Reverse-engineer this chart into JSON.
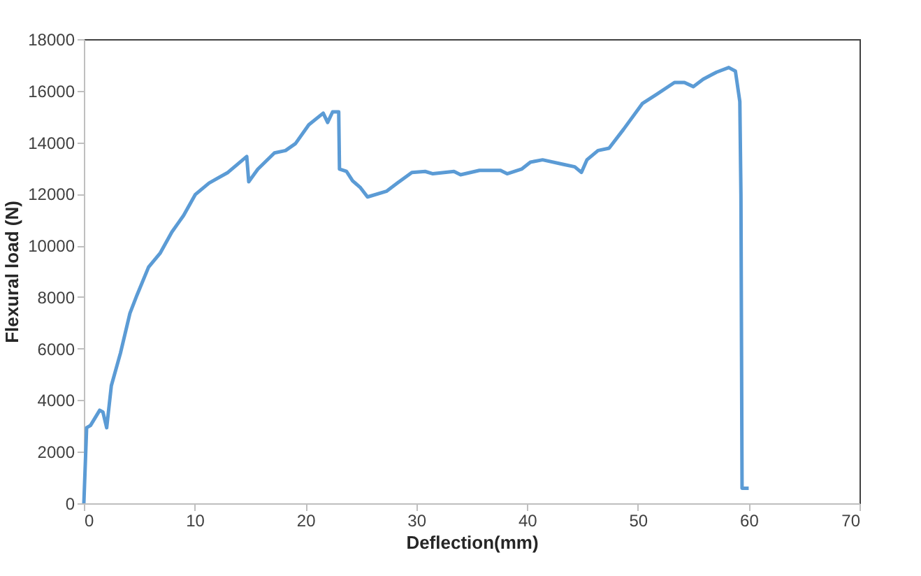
{
  "chart_data": {
    "type": "line",
    "xlabel": "Deflection(mm)",
    "ylabel": "Flexural load (N)",
    "xlim": [
      0,
      70
    ],
    "xticks": [
      0,
      10,
      20,
      30,
      40,
      50,
      60,
      70
    ],
    "ylim": [
      0,
      18000
    ],
    "yticks": [
      0,
      2000,
      4000,
      6000,
      8000,
      10000,
      12000,
      14000,
      16000,
      18000
    ],
    "grid": false,
    "marker": "none",
    "line_style": "solid",
    "series": [
      {
        "color": "#5b9bd5",
        "x": [
          0,
          0.25,
          0.6,
          1.43,
          1.72,
          2.06,
          2.48,
          3.3,
          4.16,
          4.8,
          5.84,
          6.9,
          7.94,
          9.0,
          10.05,
          11.3,
          13.0,
          14.7,
          14.88,
          15.7,
          17.2,
          18.2,
          19.1,
          20.3,
          21.6,
          22.0,
          22.45,
          23.0,
          23.07,
          23.7,
          24.25,
          24.96,
          25.6,
          27.3,
          28.3,
          29.6,
          30.8,
          31.5,
          33.4,
          34.0,
          35.7,
          37.6,
          38.2,
          39.5,
          40.3,
          41.4,
          43.3,
          44.3,
          44.9,
          45.4,
          46.4,
          47.4,
          48.7,
          50.4,
          51.7,
          53.3,
          54.2,
          55.0,
          55.9,
          57.1,
          58.2,
          58.8,
          59.2,
          59.3,
          59.4,
          60.0
        ],
        "values": [
          0,
          2930,
          3020,
          3610,
          3540,
          2930,
          4560,
          5820,
          7370,
          8080,
          9160,
          9710,
          10520,
          11160,
          11970,
          12420,
          12830,
          13450,
          12470,
          12960,
          13590,
          13680,
          13950,
          14680,
          15130,
          14770,
          15180,
          15180,
          12960,
          12870,
          12510,
          12240,
          11880,
          12100,
          12420,
          12830,
          12870,
          12780,
          12870,
          12740,
          12910,
          12910,
          12780,
          12960,
          13230,
          13320,
          13140,
          13050,
          12830,
          13320,
          13680,
          13770,
          14500,
          15500,
          15860,
          16320,
          16320,
          16160,
          16450,
          16720,
          16900,
          16760,
          15580,
          11970,
          580,
          580
        ]
      }
    ]
  }
}
